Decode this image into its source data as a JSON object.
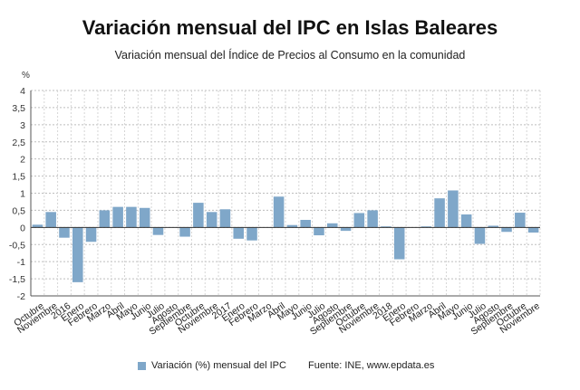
{
  "chart_data": {
    "type": "bar",
    "title": "Variación mensual del IPC en Islas Baleares",
    "subtitle": "Variación mensual del Índice de Precios al Consumo en la comunidad",
    "ylabel": "%",
    "ylim": [
      -2,
      4
    ],
    "yticks": [
      -2,
      -1.5,
      -1,
      -0.5,
      0,
      0.5,
      1,
      1.5,
      2,
      2.5,
      3,
      3.5,
      4
    ],
    "ytick_labels": [
      "-2",
      "-1,5",
      "-1",
      "-0,5",
      "0",
      "0,5",
      "1",
      "1,5",
      "2",
      "2,5",
      "3",
      "3,5",
      "4"
    ],
    "grid": true,
    "legend_position": "bottom",
    "categories": [
      "Octubre",
      "Noviembre",
      "2016",
      "Enero",
      "Febrero",
      "Marzo",
      "Abril",
      "Mayo",
      "Junio",
      "Julio",
      "Agosto",
      "Septiembre",
      "Octubre",
      "Noviembre",
      "2017",
      "Enero",
      "Febrero",
      "Marzo",
      "Abril",
      "Mayo",
      "Junio",
      "Julio",
      "Agosto",
      "Septiembre",
      "Octubre",
      "Noviembre",
      "2018",
      "Enero",
      "Febrero",
      "Marzo",
      "Abril",
      "Mayo",
      "Junio",
      "Julio",
      "Agosto",
      "Septiembre",
      "Octubre",
      "Noviembre"
    ],
    "series": [
      {
        "name": "Variación (%) mensual del IPC",
        "color": "#7fa7c9",
        "values": [
          0.08,
          0.45,
          -0.3,
          -1.6,
          -0.42,
          0.5,
          0.6,
          0.6,
          0.57,
          -0.22,
          0.0,
          -0.27,
          0.72,
          0.45,
          0.53,
          -0.33,
          -0.38,
          0.0,
          0.9,
          0.07,
          0.22,
          -0.23,
          0.12,
          -0.1,
          0.42,
          0.5,
          0.03,
          -0.93,
          0.0,
          0.03,
          0.85,
          1.08,
          0.38,
          -0.48,
          0.05,
          -0.13,
          0.43,
          -0.15
        ]
      }
    ]
  },
  "legend": {
    "label": "Variación (%) mensual del IPC"
  },
  "source": "Fuente: INE, www.epdata.es"
}
